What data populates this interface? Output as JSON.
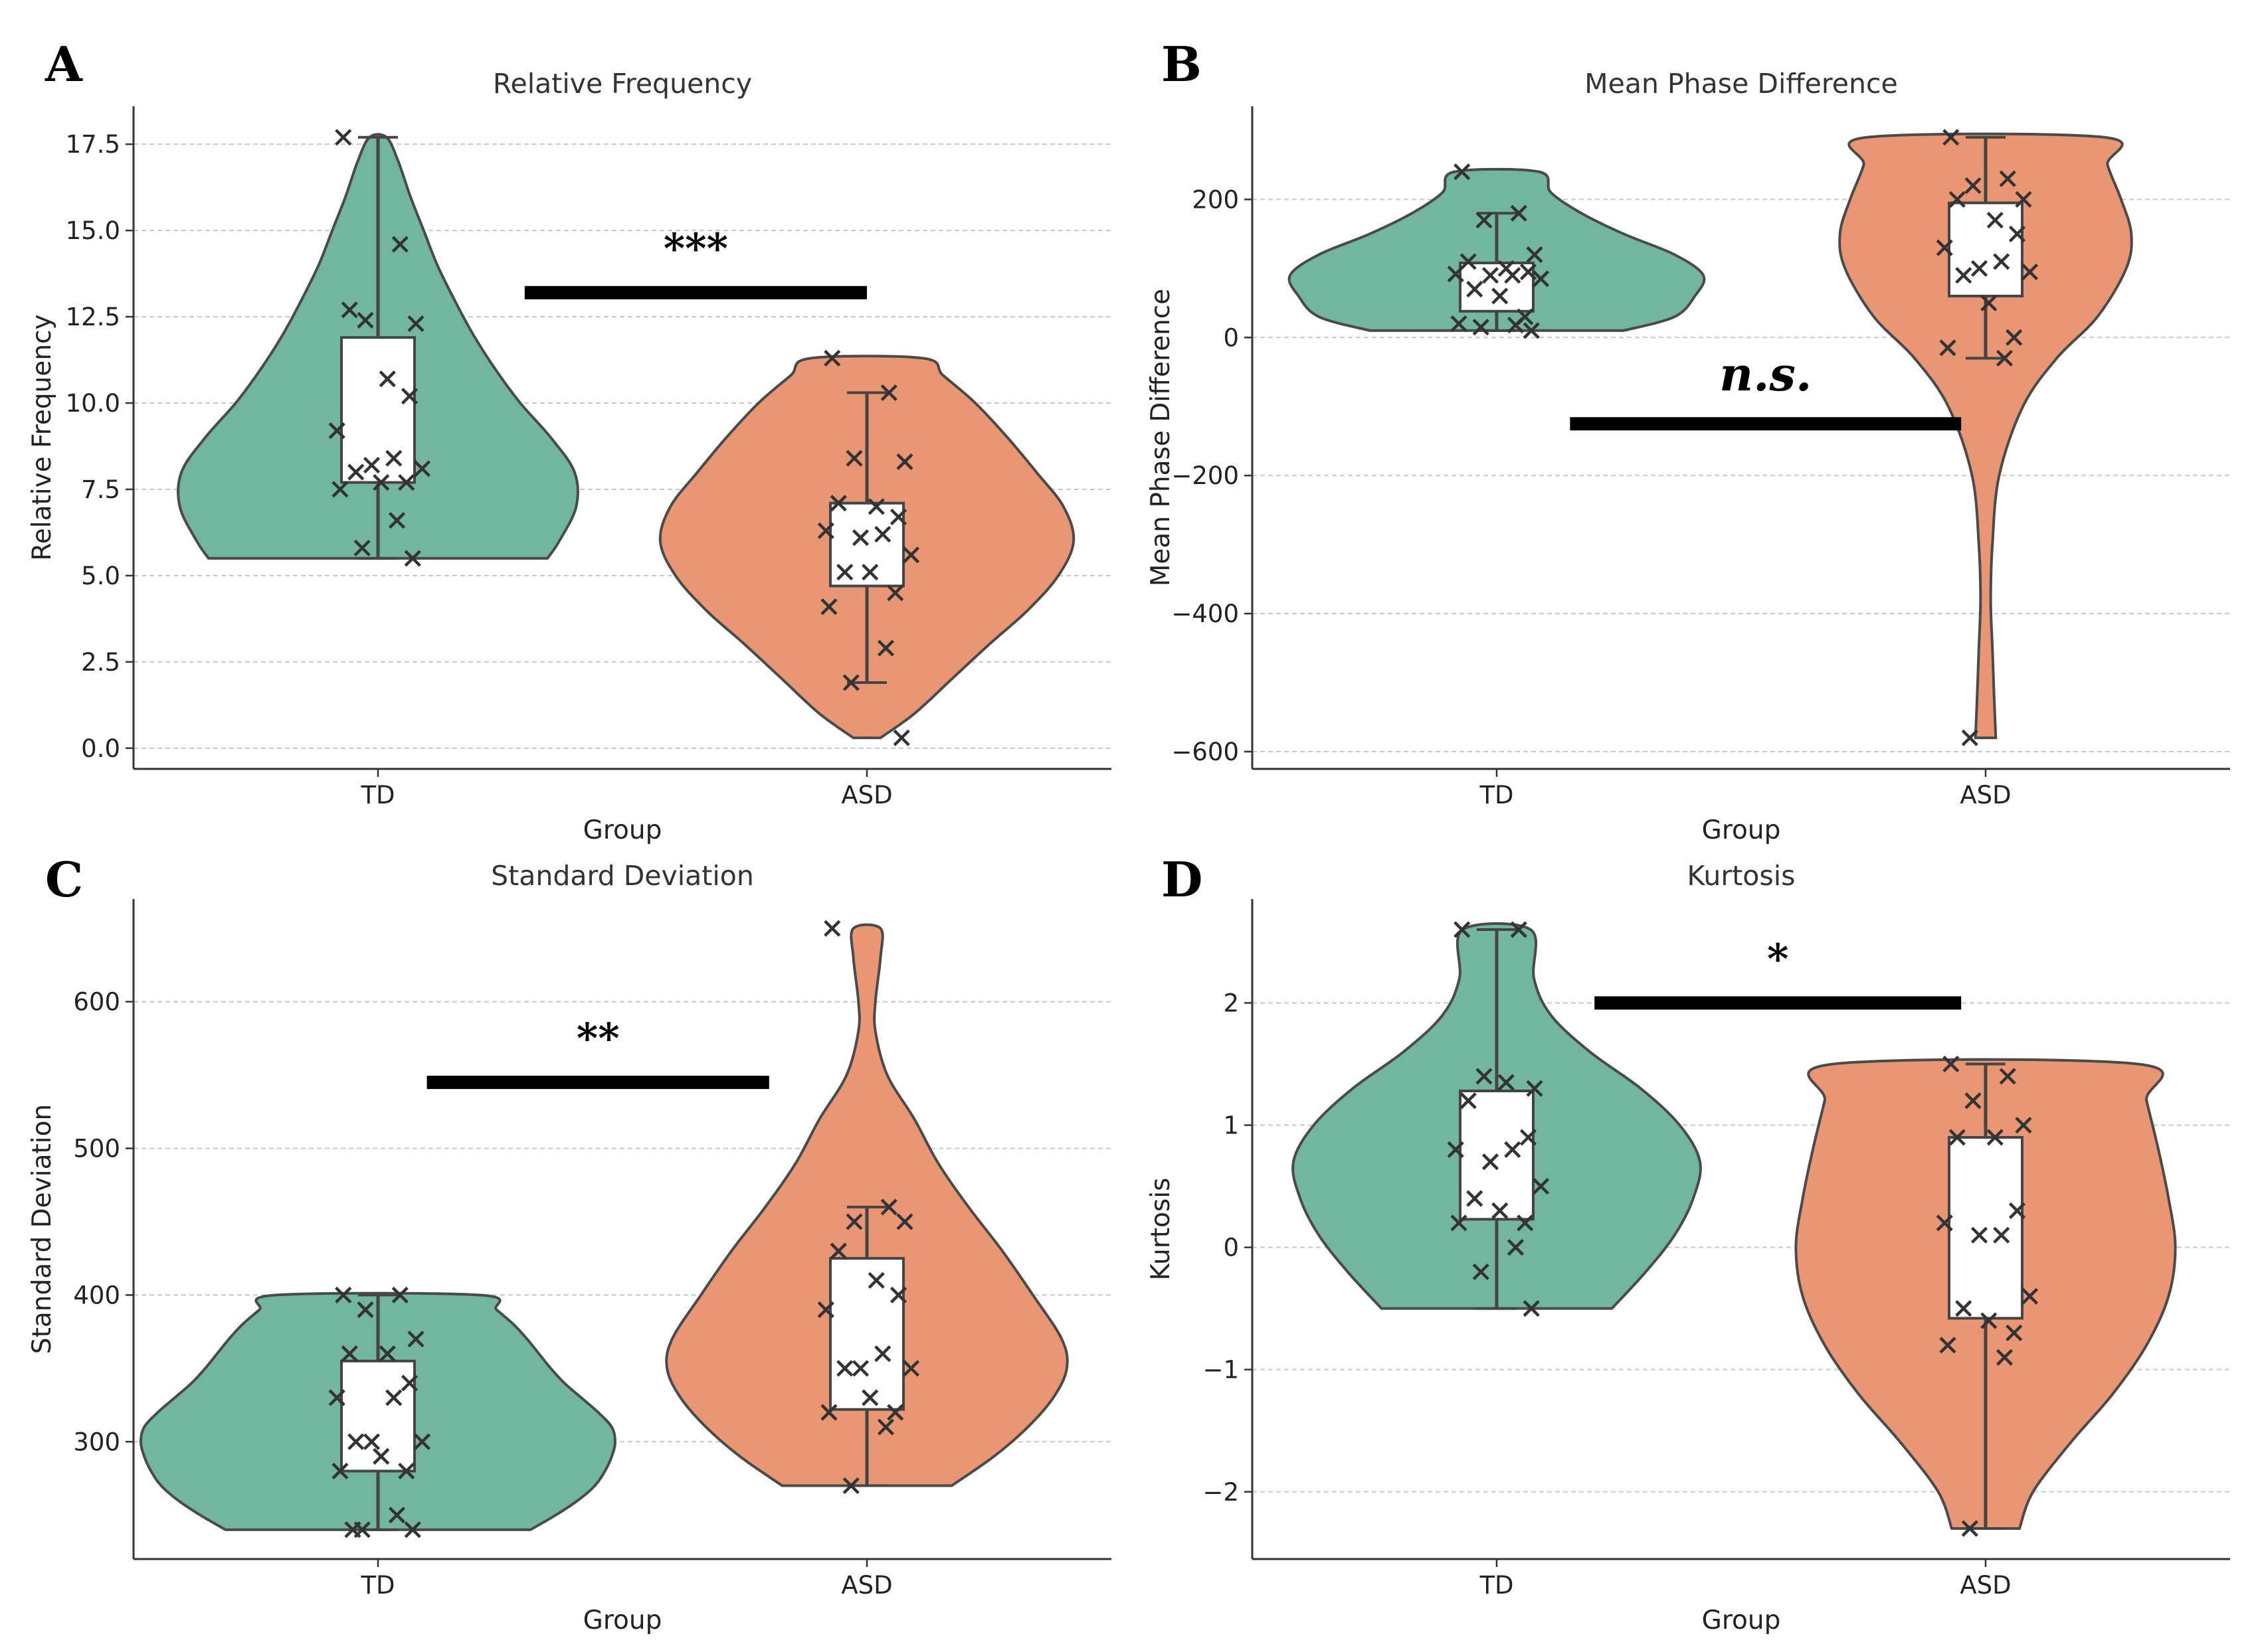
{
  "chart_data": [
    {
      "panel": "A",
      "type": "violin",
      "title": "Relative Frequency",
      "xlabel": "Group",
      "ylabel": "Relative Frequency",
      "categories": [
        "TD",
        "ASD"
      ],
      "ylim": [
        -0.6,
        18.6
      ],
      "yticks": [
        0.0,
        2.5,
        5.0,
        7.5,
        10.0,
        12.5,
        15.0,
        17.5
      ],
      "ytick_labels": [
        "0.0",
        "2.5",
        "5.0",
        "7.5",
        "10.0",
        "12.5",
        "15.0",
        "17.5"
      ],
      "grid": true,
      "significance": {
        "label": "***",
        "y": 13.2,
        "x_from": 0.3,
        "x_to": 1.0
      },
      "groups": [
        {
          "name": "TD",
          "color": "#72b6a1",
          "violin_range": [
            5.5,
            17.7
          ],
          "violin_profile": [
            [
              5.5,
              1.0
            ],
            [
              6.0,
              1.07
            ],
            [
              7.0,
              1.17
            ],
            [
              8.0,
              1.16
            ],
            [
              9.0,
              1.02
            ],
            [
              10.0,
              0.84
            ],
            [
              11.0,
              0.69
            ],
            [
              12.0,
              0.56
            ],
            [
              13.0,
              0.45
            ],
            [
              14.0,
              0.35
            ],
            [
              15.0,
              0.27
            ],
            [
              16.0,
              0.19
            ],
            [
              17.0,
              0.12
            ],
            [
              17.7,
              0.05
            ]
          ],
          "box": {
            "q1": 7.7,
            "q3": 11.9,
            "whisker_low": 5.5,
            "whisker_high": 17.7
          },
          "points": [
            17.7,
            14.6,
            12.4,
            12.3,
            12.7,
            10.7,
            10.2,
            9.2,
            8.4,
            8.2,
            8.1,
            8.0,
            7.7,
            7.7,
            7.5,
            6.6,
            5.8,
            5.5
          ]
        },
        {
          "name": "ASD",
          "color": "#e99675",
          "violin_range": [
            0.3,
            11.3
          ],
          "violin_profile": [
            [
              0.3,
              0.08
            ],
            [
              1.0,
              0.28
            ],
            [
              2.0,
              0.5
            ],
            [
              3.0,
              0.72
            ],
            [
              4.0,
              0.95
            ],
            [
              5.0,
              1.13
            ],
            [
              6.0,
              1.22
            ],
            [
              7.0,
              1.16
            ],
            [
              8.0,
              1.0
            ],
            [
              9.0,
              0.83
            ],
            [
              10.0,
              0.64
            ],
            [
              10.8,
              0.45
            ],
            [
              11.3,
              0.33
            ]
          ],
          "box": {
            "q1": 4.7,
            "q3": 7.1,
            "whisker_low": 1.9,
            "whisker_high": 10.3
          },
          "points": [
            11.3,
            10.3,
            8.4,
            8.3,
            7.1,
            7.0,
            6.7,
            6.3,
            6.2,
            6.1,
            5.6,
            5.1,
            5.1,
            4.5,
            4.1,
            2.9,
            1.9,
            0.3
          ]
        }
      ]
    },
    {
      "panel": "B",
      "type": "violin",
      "title": "Mean Phase Difference",
      "xlabel": "Group",
      "ylabel": "Mean Phase Difference",
      "categories": [
        "TD",
        "ASD"
      ],
      "ylim": [
        -625,
        335
      ],
      "yticks": [
        -600,
        -400,
        -200,
        0,
        200
      ],
      "ytick_labels": [
        "−600",
        "−400",
        "−200",
        "0",
        "200"
      ],
      "grid": true,
      "significance": {
        "label": "n.s.",
        "y": -125,
        "x_from": 0.15,
        "x_to": 0.95
      },
      "groups": [
        {
          "name": "TD",
          "color": "#72b6a1",
          "violin_range": [
            10,
            240
          ],
          "violin_profile": [
            [
              10,
              0.75
            ],
            [
              30,
              1.05
            ],
            [
              60,
              1.17
            ],
            [
              90,
              1.22
            ],
            [
              120,
              1.05
            ],
            [
              150,
              0.75
            ],
            [
              180,
              0.5
            ],
            [
              210,
              0.32
            ],
            [
              240,
              0.25
            ]
          ],
          "box": {
            "q1": 38,
            "q3": 108,
            "whisker_low": 10,
            "whisker_high": 180
          },
          "points": [
            240,
            180,
            170,
            120,
            110,
            100,
            95,
            92,
            90,
            90,
            85,
            70,
            60,
            30,
            20,
            18,
            15,
            10
          ]
        },
        {
          "name": "ASD",
          "color": "#e99675",
          "violin_range": [
            -580,
            290
          ],
          "violin_profile": [
            [
              -580,
              0.06
            ],
            [
              -520,
              0.05
            ],
            [
              -450,
              0.04
            ],
            [
              -380,
              0.03
            ],
            [
              -300,
              0.04
            ],
            [
              -200,
              0.08
            ],
            [
              -100,
              0.22
            ],
            [
              -30,
              0.42
            ],
            [
              30,
              0.66
            ],
            [
              100,
              0.83
            ],
            [
              150,
              0.86
            ],
            [
              200,
              0.8
            ],
            [
              250,
              0.72
            ],
            [
              290,
              0.7
            ]
          ],
          "box": {
            "q1": 60,
            "q3": 195,
            "whisker_low": -30,
            "whisker_high": 290
          },
          "points": [
            290,
            230,
            220,
            200,
            200,
            170,
            150,
            130,
            110,
            100,
            95,
            90,
            50,
            0,
            -15,
            -30,
            -580
          ]
        }
      ]
    },
    {
      "panel": "C",
      "type": "violin",
      "title": "Standard Deviation",
      "xlabel": "Group",
      "ylabel": "Standard Deviation",
      "categories": [
        "TD",
        "ASD"
      ],
      "ylim": [
        220,
        670
      ],
      "yticks": [
        300,
        400,
        500,
        600
      ],
      "ytick_labels": [
        "300",
        "400",
        "500",
        "600"
      ],
      "grid": true,
      "significance": {
        "label": "**",
        "y": 545,
        "x_from": 0.1,
        "x_to": 0.8
      },
      "groups": [
        {
          "name": "TD",
          "color": "#72b6a1",
          "violin_range": [
            240,
            400
          ],
          "violin_profile": [
            [
              240,
              0.9
            ],
            [
              250,
              1.05
            ],
            [
              260,
              1.18
            ],
            [
              270,
              1.28
            ],
            [
              280,
              1.34
            ],
            [
              290,
              1.38
            ],
            [
              300,
              1.4
            ],
            [
              310,
              1.38
            ],
            [
              320,
              1.3
            ],
            [
              330,
              1.2
            ],
            [
              340,
              1.1
            ],
            [
              350,
              1.02
            ],
            [
              360,
              0.95
            ],
            [
              370,
              0.88
            ],
            [
              380,
              0.8
            ],
            [
              390,
              0.7
            ],
            [
              400,
              0.6
            ]
          ],
          "box": {
            "q1": 280,
            "q3": 355,
            "whisker_low": 240,
            "whisker_high": 400
          },
          "points": [
            400,
            400,
            390,
            370,
            360,
            360,
            340,
            330,
            330,
            300,
            300,
            300,
            290,
            280,
            280,
            250,
            240,
            240,
            240
          ]
        },
        {
          "name": "ASD",
          "color": "#e99675",
          "violin_range": [
            270,
            650
          ],
          "violin_profile": [
            [
              270,
              0.5
            ],
            [
              290,
              0.75
            ],
            [
              310,
              0.95
            ],
            [
              330,
              1.1
            ],
            [
              350,
              1.18
            ],
            [
              370,
              1.15
            ],
            [
              400,
              0.98
            ],
            [
              430,
              0.8
            ],
            [
              460,
              0.6
            ],
            [
              490,
              0.42
            ],
            [
              520,
              0.28
            ],
            [
              550,
              0.12
            ],
            [
              580,
              0.05
            ],
            [
              600,
              0.05
            ],
            [
              630,
              0.08
            ],
            [
              650,
              0.08
            ]
          ],
          "box": {
            "q1": 322,
            "q3": 425,
            "whisker_low": 270,
            "whisker_high": 460
          },
          "points": [
            650,
            460,
            450,
            450,
            430,
            410,
            400,
            390,
            360,
            350,
            350,
            350,
            330,
            320,
            320,
            310,
            270
          ]
        }
      ]
    },
    {
      "panel": "D",
      "type": "violin",
      "title": "Kurtosis",
      "xlabel": "Group",
      "ylabel": "Kurtosis",
      "categories": [
        "TD",
        "ASD"
      ],
      "ylim": [
        -2.55,
        2.85
      ],
      "yticks": [
        -2,
        -1,
        0,
        1,
        2
      ],
      "ytick_labels": [
        "−2",
        "−1",
        "0",
        "1",
        "2"
      ],
      "grid": true,
      "significance": {
        "label": "*",
        "y": 2.0,
        "x_from": 0.2,
        "x_to": 0.95
      },
      "groups": [
        {
          "name": "TD",
          "color": "#72b6a1",
          "violin_range": [
            -0.5,
            2.6
          ],
          "violin_profile": [
            [
              -0.5,
              0.68
            ],
            [
              -0.2,
              0.88
            ],
            [
              0.1,
              1.05
            ],
            [
              0.4,
              1.16
            ],
            [
              0.7,
              1.2
            ],
            [
              1.0,
              1.08
            ],
            [
              1.3,
              0.85
            ],
            [
              1.6,
              0.55
            ],
            [
              1.9,
              0.32
            ],
            [
              2.2,
              0.22
            ],
            [
              2.6,
              0.2
            ]
          ],
          "box": {
            "q1": 0.23,
            "q3": 1.28,
            "whisker_low": -0.5,
            "whisker_high": 2.6
          },
          "points": [
            2.6,
            2.6,
            1.4,
            1.3,
            1.2,
            1.35,
            0.9,
            0.8,
            0.8,
            0.7,
            0.5,
            0.4,
            0.3,
            0.2,
            0.2,
            0.0,
            -0.2,
            -0.5
          ]
        },
        {
          "name": "ASD",
          "color": "#e99675",
          "violin_range": [
            -2.3,
            1.5
          ],
          "violin_profile": [
            [
              -2.3,
              0.2
            ],
            [
              -2.0,
              0.28
            ],
            [
              -1.6,
              0.5
            ],
            [
              -1.2,
              0.75
            ],
            [
              -0.8,
              0.95
            ],
            [
              -0.4,
              1.08
            ],
            [
              0.0,
              1.12
            ],
            [
              0.4,
              1.08
            ],
            [
              0.8,
              1.02
            ],
            [
              1.2,
              0.95
            ],
            [
              1.5,
              0.9
            ]
          ],
          "box": {
            "q1": -0.58,
            "q3": 0.9,
            "whisker_low": -2.3,
            "whisker_high": 1.5
          },
          "points": [
            1.5,
            1.4,
            1.2,
            1.0,
            0.9,
            0.9,
            0.3,
            0.2,
            0.1,
            0.1,
            -0.4,
            -0.5,
            -0.6,
            -0.7,
            -0.8,
            -0.9,
            -2.3
          ]
        }
      ]
    }
  ]
}
